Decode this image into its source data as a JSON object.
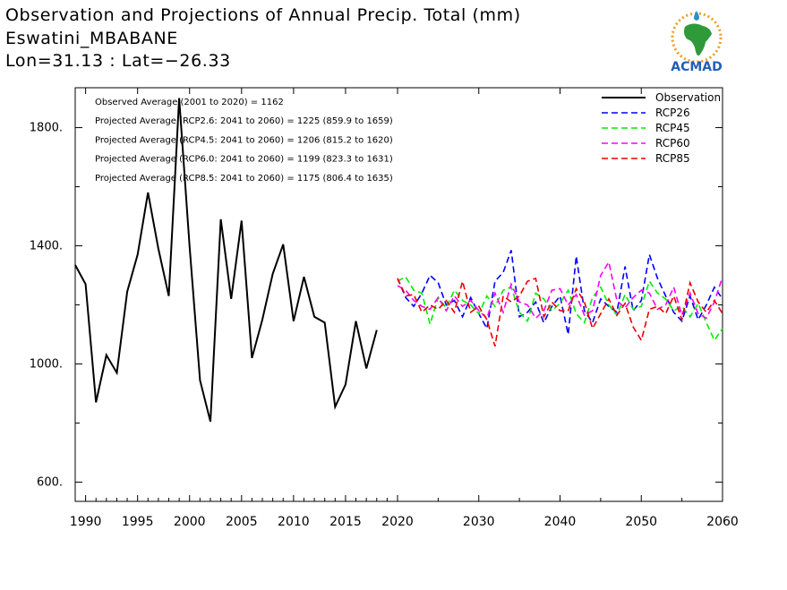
{
  "header": {
    "title": "Observation and Projections of Annual Precip. Total (mm)",
    "station": "Eswatini_MBABANE",
    "coords": "Lon=31.13 : Lat=−26.33"
  },
  "logo": {
    "text": "ACMAD"
  },
  "chart_data": {
    "type": "line",
    "title": "Observation and Projections of Annual Precip. Total (mm)",
    "xlabel": "",
    "ylabel": "",
    "xlim": [
      1989,
      2060
    ],
    "ylim": [
      535,
      1935
    ],
    "y_ticks": [
      600,
      1000,
      1400,
      1800
    ],
    "y_tick_labels": [
      "600.",
      "1000.",
      "1400.",
      "1800."
    ],
    "x_ticks_hist": [
      1990,
      1995,
      2000,
      2005,
      2010,
      2015,
      2020
    ],
    "x_ticks_proj": [
      2030,
      2040,
      2050,
      2060
    ],
    "grid": false,
    "legend_position": "top-right",
    "stats": [
      "Observed Average (2001 to 2020) = 1162",
      "Projected Average (RCP2.6: 2041 to 2060) = 1225 (859.9 to 1659)",
      "Projected Average (RCP4.5: 2041 to 2060) = 1206 (815.2 to 1620)",
      "Projected Average (RCP6.0: 2041 to 2060) = 1199 (823.3 to 1631)",
      "Projected Average (RCP8.5: 2041 to 2060) = 1175 (806.4 to 1635)"
    ],
    "series": [
      {
        "name": "Observation",
        "color": "#000000",
        "dash": "solid",
        "x": [
          1989,
          1990,
          1991,
          1992,
          1993,
          1994,
          1995,
          1996,
          1997,
          1998,
          1999,
          2000,
          2001,
          2002,
          2003,
          2004,
          2005,
          2006,
          2007,
          2008,
          2009,
          2010,
          2011,
          2012,
          2013,
          2014,
          2015,
          2016,
          2017,
          2018,
          2019,
          2020
        ],
        "y": [
          1335,
          1270,
          870,
          1030,
          970,
          1245,
          1370,
          1580,
          1390,
          1230,
          1900,
          1400,
          945,
          805,
          1490,
          1220,
          1485,
          1020,
          1150,
          1305,
          1405,
          1145,
          1295,
          1160,
          1140,
          855,
          930,
          1145,
          985,
          1115,
          null,
          null
        ]
      },
      {
        "name": "RCP26",
        "color": "#0000ff",
        "dash": "dashed",
        "x": [
          2020,
          2021,
          2022,
          2023,
          2024,
          2025,
          2026,
          2027,
          2028,
          2029,
          2030,
          2031,
          2032,
          2033,
          2034,
          2035,
          2036,
          2037,
          2038,
          2039,
          2040,
          2041,
          2042,
          2043,
          2044,
          2045,
          2046,
          2047,
          2048,
          2049,
          2050,
          2051,
          2052,
          2053,
          2054,
          2055,
          2056,
          2057,
          2058,
          2059,
          2060
        ],
        "y": [
          1290,
          1225,
          1195,
          1240,
          1300,
          1275,
          1200,
          1215,
          1160,
          1225,
          1170,
          1120,
          1280,
          1310,
          1385,
          1160,
          1175,
          1210,
          1140,
          1195,
          1230,
          1100,
          1365,
          1180,
          1140,
          1220,
          1195,
          1175,
          1330,
          1180,
          1215,
          1370,
          1290,
          1230,
          1175,
          1145,
          1230,
          1150,
          1200,
          1260,
          1220
        ]
      },
      {
        "name": "RCP45",
        "color": "#00ee00",
        "dash": "dashed",
        "x": [
          2020,
          2021,
          2022,
          2023,
          2024,
          2025,
          2026,
          2027,
          2028,
          2029,
          2030,
          2031,
          2032,
          2033,
          2034,
          2035,
          2036,
          2037,
          2038,
          2039,
          2040,
          2041,
          2042,
          2043,
          2044,
          2045,
          2046,
          2047,
          2048,
          2049,
          2050,
          2051,
          2052,
          2053,
          2054,
          2055,
          2056,
          2057,
          2058,
          2059,
          2060
        ],
        "y": [
          1280,
          1295,
          1250,
          1240,
          1135,
          1225,
          1190,
          1250,
          1215,
          1200,
          1170,
          1230,
          1195,
          1250,
          1260,
          1175,
          1145,
          1240,
          1220,
          1180,
          1205,
          1250,
          1170,
          1140,
          1225,
          1260,
          1200,
          1165,
          1235,
          1185,
          1195,
          1280,
          1240,
          1220,
          1180,
          1195,
          1160,
          1205,
          1140,
          1080,
          1120
        ]
      },
      {
        "name": "RCP60",
        "color": "#ff00ff",
        "dash": "dashed",
        "x": [
          2020,
          2021,
          2022,
          2023,
          2024,
          2025,
          2026,
          2027,
          2028,
          2029,
          2030,
          2031,
          2032,
          2033,
          2034,
          2035,
          2036,
          2037,
          2038,
          2039,
          2040,
          2041,
          2042,
          2043,
          2044,
          2045,
          2046,
          2047,
          2048,
          2049,
          2050,
          2051,
          2052,
          2053,
          2054,
          2055,
          2056,
          2057,
          2058,
          2059,
          2060
        ],
        "y": [
          1265,
          1250,
          1215,
          1195,
          1185,
          1225,
          1180,
          1230,
          1195,
          1215,
          1180,
          1155,
          1240,
          1175,
          1270,
          1210,
          1200,
          1155,
          1180,
          1250,
          1255,
          1200,
          1235,
          1165,
          1180,
          1300,
          1345,
          1215,
          1190,
          1225,
          1250,
          1240,
          1185,
          1200,
          1260,
          1165,
          1240,
          1170,
          1155,
          1210,
          1295
        ]
      },
      {
        "name": "RCP85",
        "color": "#ee0000",
        "dash": "dashed",
        "x": [
          2020,
          2021,
          2022,
          2023,
          2024,
          2025,
          2026,
          2027,
          2028,
          2029,
          2030,
          2031,
          2032,
          2033,
          2034,
          2035,
          2036,
          2037,
          2038,
          2039,
          2040,
          2041,
          2042,
          2043,
          2044,
          2045,
          2046,
          2047,
          2048,
          2049,
          2050,
          2051,
          2052,
          2053,
          2054,
          2055,
          2056,
          2057,
          2058,
          2059,
          2060
        ],
        "y": [
          1290,
          1230,
          1235,
          1175,
          1200,
          1185,
          1215,
          1175,
          1280,
          1175,
          1195,
          1150,
          1060,
          1230,
          1210,
          1230,
          1280,
          1290,
          1160,
          1210,
          1180,
          1180,
          1255,
          1210,
          1120,
          1170,
          1220,
          1165,
          1205,
          1125,
          1080,
          1185,
          1195,
          1170,
          1230,
          1150,
          1275,
          1210,
          1175,
          1215,
          1170
        ]
      }
    ]
  }
}
